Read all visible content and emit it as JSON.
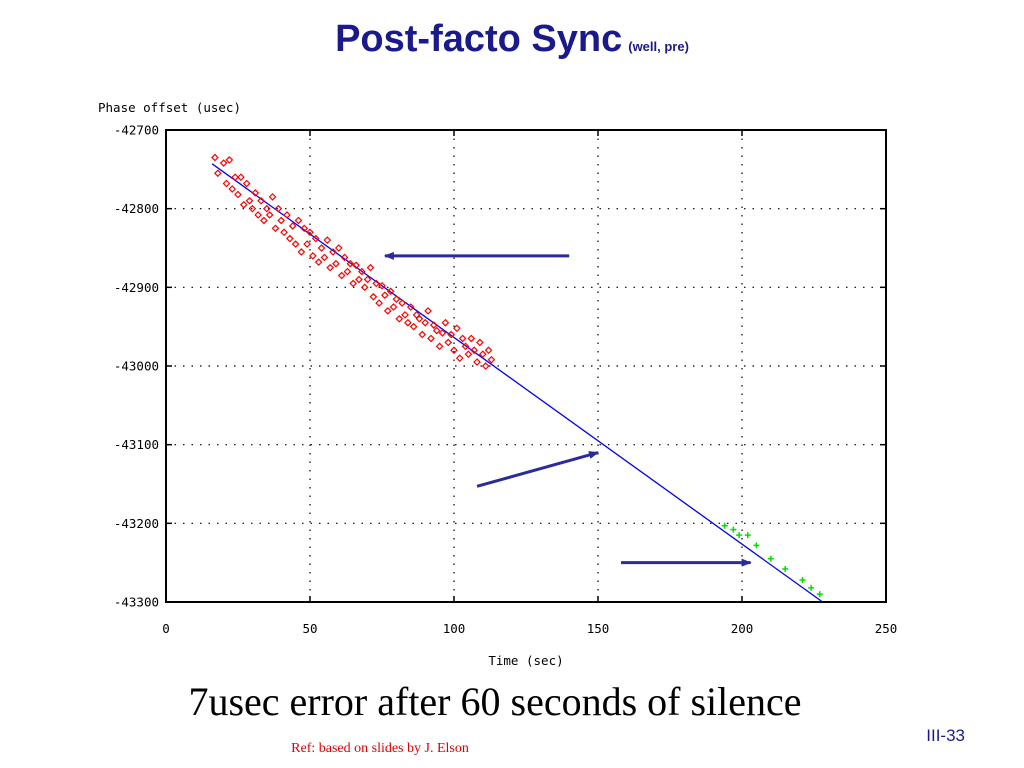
{
  "slide": {
    "title": "Post-facto Sync",
    "subtitle": "(well, pre)",
    "caption": "7usec error after 60 seconds of silence",
    "slide_number": "III-33",
    "reference": "Ref: based on slides by J. Elson"
  },
  "chart_data": {
    "type": "scatter",
    "title": "",
    "xlabel": "Time (sec)",
    "ylabel": "Phase offset (usec)",
    "xlim": [
      0,
      250
    ],
    "ylim": [
      -43300,
      -42700
    ],
    "xticks": [
      "0",
      "50",
      "100",
      "150",
      "200",
      "250"
    ],
    "yticks": [
      "-42700",
      "-42800",
      "-42900",
      "-43000",
      "-43100",
      "-43200",
      "-43300"
    ],
    "grid": true,
    "legend": "none",
    "series": [
      {
        "kind": "points",
        "marker": "diamond",
        "color": "#ff0000",
        "x": [
          17,
          18,
          20,
          21,
          22,
          23,
          24,
          25,
          26,
          27,
          28,
          29,
          30,
          31,
          32,
          33,
          34,
          35,
          36,
          37,
          38,
          39,
          40,
          41,
          42,
          43,
          44,
          45,
          46,
          47,
          48,
          49,
          50,
          51,
          52,
          53,
          54,
          55,
          56,
          57,
          58,
          59,
          60,
          61,
          62,
          63,
          64,
          65,
          66,
          67,
          68,
          69,
          70,
          71,
          72,
          73,
          74,
          75,
          76,
          77,
          78,
          79,
          80,
          81,
          82,
          83,
          84,
          85,
          86,
          87,
          88,
          89,
          90,
          91,
          92,
          93,
          94,
          95,
          96,
          97,
          98,
          99,
          100,
          101,
          102,
          103,
          104,
          105,
          106,
          107,
          108,
          109,
          110,
          111,
          112,
          113
        ],
        "y": [
          -42735,
          -42755,
          -42742,
          -42768,
          -42738,
          -42775,
          -42760,
          -42782,
          -42760,
          -42795,
          -42768,
          -42790,
          -42800,
          -42780,
          -42808,
          -42790,
          -42815,
          -42800,
          -42808,
          -42785,
          -42825,
          -42800,
          -42815,
          -42830,
          -42808,
          -42838,
          -42822,
          -42845,
          -42815,
          -42855,
          -42825,
          -42845,
          -42830,
          -42860,
          -42838,
          -42868,
          -42850,
          -42862,
          -42840,
          -42875,
          -42855,
          -42870,
          -42850,
          -42885,
          -42862,
          -42880,
          -42870,
          -42895,
          -42872,
          -42890,
          -42880,
          -42900,
          -42890,
          -42875,
          -42912,
          -42895,
          -42920,
          -42898,
          -42910,
          -42930,
          -42905,
          -42925,
          -42915,
          -42940,
          -42920,
          -42935,
          -42945,
          -42925,
          -42950,
          -42935,
          -42940,
          -42960,
          -42945,
          -42930,
          -42965,
          -42948,
          -42955,
          -42975,
          -42958,
          -42945,
          -42970,
          -42960,
          -42980,
          -42952,
          -42990,
          -42965,
          -42975,
          -42985,
          -42965,
          -42980,
          -42995,
          -42970,
          -42985,
          -43000,
          -42980,
          -42992
        ]
      },
      {
        "kind": "points",
        "marker": "plus",
        "color": "#00e000",
        "x": [
          194,
          197,
          199,
          202,
          205,
          210,
          215,
          221,
          224,
          227
        ],
        "y": [
          -43203,
          -43208,
          -43215,
          -43215,
          -43228,
          -43245,
          -43258,
          -43272,
          -43282,
          -43290
        ]
      },
      {
        "kind": "line",
        "color": "#0000ff",
        "x": [
          16,
          228
        ],
        "y": [
          -42743,
          -43300
        ]
      }
    ],
    "annotations": [
      {
        "type": "arrow",
        "color": "#2b2b9a",
        "from": [
          140,
          -42860
        ],
        "to": [
          76,
          -42860
        ]
      },
      {
        "type": "arrow",
        "color": "#2b2b9a",
        "from": [
          108,
          -43153
        ],
        "to": [
          150,
          -43110
        ]
      },
      {
        "type": "arrow",
        "color": "#2b2b9a",
        "from": [
          158,
          -43250
        ],
        "to": [
          203,
          -43250
        ]
      }
    ]
  }
}
